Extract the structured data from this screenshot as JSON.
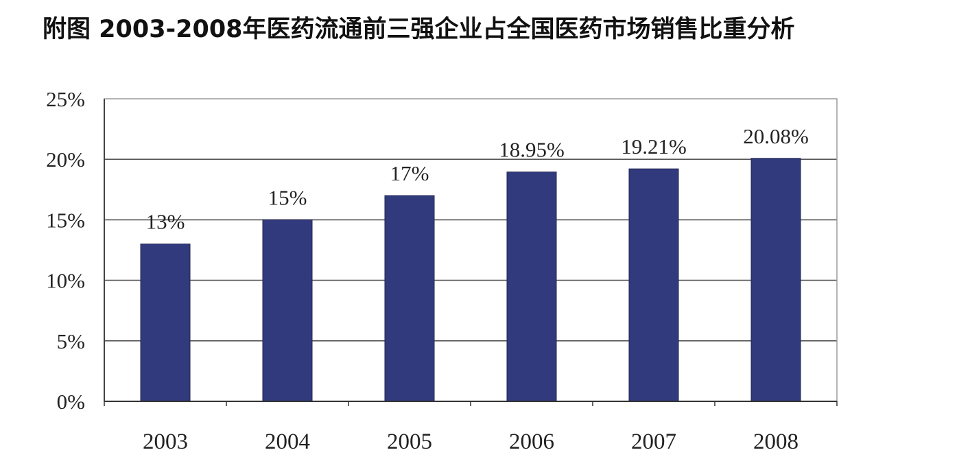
{
  "title": "附图 2003-2008年医药流通前三强企业占全国医药市场销售比重分析",
  "chart_data": {
    "type": "bar",
    "categories": [
      "2003",
      "2004",
      "2005",
      "2006",
      "2007",
      "2008"
    ],
    "values": [
      13,
      15,
      17,
      18.95,
      19.21,
      20.08
    ],
    "data_labels": [
      "13%",
      "15%",
      "17%",
      "18.95%",
      "19.21%",
      "20.08%"
    ],
    "y_ticks": [
      "0%",
      "5%",
      "10%",
      "15%",
      "20%",
      "25%"
    ],
    "ylim": [
      0,
      25
    ],
    "grid": true,
    "legend": "none",
    "bar_color": "#323A7E"
  }
}
